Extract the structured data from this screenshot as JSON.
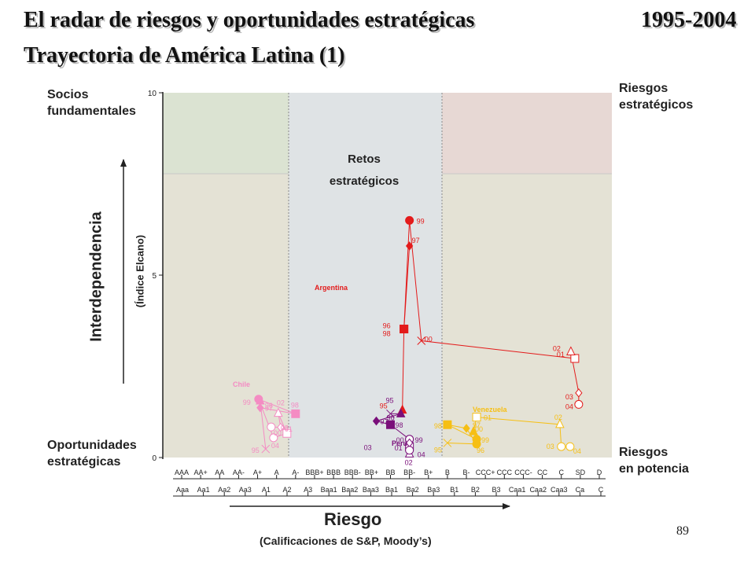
{
  "header": {
    "title": "El radar de riesgos y oportunidades estratégicas",
    "years": "1995-2004",
    "subtitle": "Trayectoria de América Latina (1)"
  },
  "quadrants": {
    "top_left": [
      "Socios",
      "fundamentales"
    ],
    "top_right": [
      "Riesgos",
      "estratégicos"
    ],
    "bottom_left": [
      "Oportunidades",
      "estratégicas"
    ],
    "bottom_right": [
      "Riesgos",
      "en potencia"
    ],
    "center": [
      "Retos",
      "estratégicos"
    ]
  },
  "y_axis": {
    "title": "Interdependencia",
    "subtitle": "(Índice Elcano)",
    "ticks": [
      "0",
      "5",
      "10"
    ]
  },
  "x_axis": {
    "title": "Riesgo",
    "subtitle": "(Calificaciones de S&P, Moody’s)"
  },
  "page_number": "89",
  "colors": {
    "background": "#e4e2d5",
    "challenge_band": "#dfe3e5",
    "top_left_zone": "#dbe3d2",
    "top_right_zone": "#e7d8d4",
    "argentina": "#e31b1b",
    "chile": "#f48cc3",
    "peru": "#7a0f7a",
    "venezuela": "#f6bf14"
  },
  "chart_data": {
    "type": "scatter",
    "title": "Trayectoria de América Latina (1)",
    "xlabel": "Riesgo",
    "ylabel": "Interdependencia",
    "ylim": [
      0,
      10
    ],
    "x_categories_sp": [
      "AAA",
      "AA+",
      "AA",
      "AA-",
      "A+",
      "A",
      "A-",
      "BBB+",
      "BBB",
      "BBB-",
      "BB+",
      "BB",
      "BB-",
      "B+",
      "B",
      "B-",
      "CCC+",
      "CCC",
      "CCC-",
      "CC",
      "C",
      "SD",
      "D"
    ],
    "x_categories_moodys": [
      "Aaa",
      "Aa1",
      "Aa2",
      "Aa3",
      "A1",
      "A2",
      "A3",
      "Baa1",
      "Baa2",
      "Baa3",
      "Ba1",
      "Ba2",
      "Ba3",
      "B1",
      "B2",
      "B3",
      "Caa1",
      "Caa2",
      "Caa3",
      "Ca",
      "C"
    ],
    "series": [
      {
        "name": "Argentina",
        "points": [
          {
            "year": "95",
            "rating": "BB-",
            "y": 1.3,
            "marker": "triangle"
          },
          {
            "year": "96",
            "rating": "BB-",
            "y": 3.2,
            "marker": "square"
          },
          {
            "year": "97",
            "rating": "BB-",
            "y": 5.8,
            "marker": "diamond"
          },
          {
            "year": "98",
            "rating": "BB-",
            "y": 3.2,
            "marker": "square"
          },
          {
            "year": "99",
            "rating": "BB-",
            "y": 6.5,
            "marker": "circle"
          },
          {
            "year": "00",
            "rating": "B+",
            "y": 3.2,
            "marker": "cross"
          },
          {
            "year": "01",
            "rating": "SD",
            "y": 2.5,
            "marker": "square-open"
          },
          {
            "year": "02",
            "rating": "SD",
            "y": 2.9,
            "marker": "triangle-open"
          },
          {
            "year": "03",
            "rating": "SD",
            "y": 1.9,
            "marker": "diamond-open"
          },
          {
            "year": "04",
            "rating": "SD",
            "y": 1.5,
            "marker": "circle-open"
          }
        ]
      },
      {
        "name": "Chile",
        "points": [
          {
            "year": "95",
            "rating": "A-",
            "y": 0.6,
            "marker": "cross"
          },
          {
            "year": "96",
            "rating": "A-",
            "y": 1.1,
            "marker": "triangle"
          },
          {
            "year": "97",
            "rating": "A-",
            "y": 1.3,
            "marker": "diamond"
          },
          {
            "year": "98",
            "rating": "A-",
            "y": 1.2,
            "marker": "square"
          },
          {
            "year": "99",
            "rating": "A-",
            "y": 1.6,
            "marker": "circle"
          },
          {
            "year": "00",
            "rating": "A-",
            "y": 0.8,
            "marker": "circle-open"
          },
          {
            "year": "01",
            "rating": "A-",
            "y": 0.9,
            "marker": "square-open"
          },
          {
            "year": "02",
            "rating": "A-",
            "y": 1.3,
            "marker": "triangle-open"
          },
          {
            "year": "03",
            "rating": "A-",
            "y": 1.0,
            "marker": "diamond-open"
          },
          {
            "year": "04",
            "rating": "A-",
            "y": 0.6,
            "marker": "circle-open"
          }
        ]
      },
      {
        "name": "Perú",
        "points": [
          {
            "year": "95",
            "rating": "BB",
            "y": 1.2,
            "marker": "cross"
          },
          {
            "year": "96",
            "rating": "BB-",
            "y": 1.2,
            "marker": "triangle"
          },
          {
            "year": "97",
            "rating": "BB",
            "y": 1.0,
            "marker": "diamond"
          },
          {
            "year": "98",
            "rating": "BB",
            "y": 0.9,
            "marker": "square"
          },
          {
            "year": "99",
            "rating": "BB-",
            "y": 0.5,
            "marker": "circle"
          },
          {
            "year": "00",
            "rating": "BB-",
            "y": 0.5,
            "marker": "circle-open"
          },
          {
            "year": "01",
            "rating": "BB-",
            "y": 0.3,
            "marker": "square-open"
          },
          {
            "year": "02",
            "rating": "BB-",
            "y": 0.1,
            "marker": "triangle-open"
          },
          {
            "year": "03",
            "rating": "BB-",
            "y": 0.4,
            "marker": "diamond-open"
          },
          {
            "year": "04",
            "rating": "BB-",
            "y": 0.2,
            "marker": "circle-open"
          }
        ]
      },
      {
        "name": "Venezuela",
        "points": [
          {
            "year": "95",
            "rating": "B",
            "y": 0.4,
            "marker": "cross"
          },
          {
            "year": "96",
            "rating": "B-",
            "y": 0.5,
            "marker": "circle"
          },
          {
            "year": "97",
            "rating": "B-",
            "y": 0.8,
            "marker": "diamond"
          },
          {
            "year": "98",
            "rating": "B",
            "y": 0.9,
            "marker": "square"
          },
          {
            "year": "99",
            "rating": "B-",
            "y": 0.5,
            "marker": "circle"
          },
          {
            "year": "00",
            "rating": "B-",
            "y": 0.6,
            "marker": "triangle"
          },
          {
            "year": "01",
            "rating": "B-",
            "y": 1.0,
            "marker": "square-open"
          },
          {
            "year": "02",
            "rating": "SD",
            "y": 0.8,
            "marker": "triangle-open"
          },
          {
            "year": "03",
            "rating": "C",
            "y": 0.3,
            "marker": "circle-open"
          },
          {
            "year": "04",
            "rating": "SD",
            "y": 0.3,
            "marker": "circle-open"
          }
        ]
      }
    ]
  }
}
